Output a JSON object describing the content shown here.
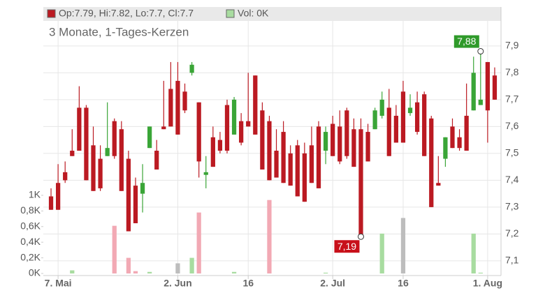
{
  "chart_data": {
    "type": "candlestick",
    "legend_text": "Op:7.79, Hi:7.82, Lo:7.7, Cl:7.7",
    "legend_volume": "Vol: 0K",
    "subtitle": "3 Monate, 1-Tages-Kerzen",
    "up_color": "#3aa537",
    "down_color": "#bb1a22",
    "volume_palette": {
      "u": "#a8dca0",
      "d": "#f2a9b4",
      "n": "#bdbdbd"
    },
    "categories": [
      null,
      "7. Mai",
      null,
      null,
      null,
      null,
      null,
      null,
      null,
      null,
      null,
      null,
      null,
      null,
      null,
      null,
      null,
      null,
      "2. Jun",
      null,
      null,
      null,
      null,
      null,
      null,
      null,
      null,
      null,
      "16",
      null,
      null,
      null,
      null,
      null,
      null,
      null,
      null,
      null,
      null,
      null,
      "2. Jul",
      null,
      null,
      null,
      null,
      null,
      null,
      null,
      null,
      null,
      "16",
      null,
      null,
      null,
      null,
      null,
      null,
      null,
      null,
      null,
      null,
      null,
      "1. Aug",
      null
    ],
    "open": [
      7.34,
      7.39,
      7.43,
      7.51,
      7.67,
      7.67,
      7.53,
      7.48,
      7.49,
      7.62,
      7.59,
      7.48,
      7.38,
      7.35,
      7.52,
      7.51,
      7.6,
      7.74,
      7.77,
      7.73,
      7.8,
      7.69,
      7.42,
      7.56,
      7.55,
      7.68,
      7.57,
      7.62,
      7.62,
      7.79,
      7.66,
      7.62,
      7.51,
      7.58,
      7.5,
      7.53,
      7.5,
      7.53,
      7.6,
      7.51,
      7.61,
      7.6,
      7.66,
      7.59,
      7.59,
      7.58,
      7.59,
      7.64,
      7.67,
      7.64,
      7.73,
      7.65,
      7.69,
      7.72,
      7.63,
      7.39,
      7.48,
      7.6,
      7.56,
      7.64,
      7.66,
      7.68,
      7.84,
      7.79
    ],
    "high": [
      7.37,
      7.46,
      7.47,
      7.59,
      7.75,
      7.68,
      7.6,
      7.53,
      7.69,
      7.63,
      7.62,
      7.51,
      7.41,
      7.46,
      7.6,
      7.55,
      7.77,
      7.84,
      7.84,
      7.76,
      7.84,
      7.69,
      7.49,
      7.6,
      7.58,
      7.7,
      7.71,
      7.65,
      7.8,
      7.79,
      7.69,
      7.64,
      7.59,
      7.62,
      7.53,
      7.55,
      7.54,
      7.6,
      7.62,
      7.6,
      7.64,
      7.66,
      7.67,
      7.63,
      7.63,
      7.61,
      7.67,
      7.73,
      7.74,
      7.68,
      7.77,
      7.72,
      7.73,
      7.73,
      7.64,
      7.49,
      7.56,
      7.63,
      7.59,
      7.76,
      7.86,
      7.88,
      7.84,
      7.82
    ],
    "low": [
      7.29,
      7.29,
      7.39,
      7.49,
      7.51,
      7.4,
      7.36,
      7.36,
      7.49,
      7.48,
      7.36,
      7.21,
      7.24,
      7.28,
      7.52,
      7.44,
      7.59,
      7.6,
      7.57,
      7.65,
      7.79,
      7.41,
      7.37,
      7.45,
      7.5,
      7.5,
      7.57,
      7.53,
      7.6,
      7.57,
      7.44,
      7.4,
      7.41,
      7.39,
      7.38,
      7.34,
      7.32,
      7.39,
      7.37,
      7.46,
      7.49,
      7.46,
      7.48,
      7.45,
      7.19,
      7.47,
      7.59,
      7.63,
      7.49,
      7.54,
      7.54,
      7.64,
      7.57,
      7.49,
      7.3,
      7.38,
      7.45,
      7.52,
      7.51,
      7.51,
      7.66,
      7.68,
      7.54,
      7.7
    ],
    "close": [
      7.29,
      7.29,
      7.4,
      7.49,
      7.51,
      7.4,
      7.36,
      7.37,
      7.52,
      7.49,
      7.36,
      7.21,
      7.24,
      7.39,
      7.6,
      7.44,
      7.59,
      7.6,
      7.57,
      7.66,
      7.83,
      7.47,
      7.43,
      7.45,
      7.51,
      7.51,
      7.7,
      7.54,
      7.6,
      7.57,
      7.44,
      7.4,
      7.41,
      7.39,
      7.38,
      7.34,
      7.32,
      7.39,
      7.37,
      7.58,
      7.49,
      7.47,
      7.49,
      7.45,
      7.19,
      7.47,
      7.66,
      7.7,
      7.49,
      7.54,
      7.54,
      7.67,
      7.58,
      7.49,
      7.3,
      7.38,
      7.56,
      7.52,
      7.52,
      7.51,
      7.8,
      7.7,
      7.66,
      7.7
    ],
    "volume": [
      0,
      0,
      0,
      0.04,
      0,
      0,
      0,
      0,
      0,
      0.61,
      0,
      0.2,
      0.03,
      0,
      0.02,
      0,
      0,
      0,
      0.13,
      0,
      0.2,
      0.78,
      0,
      0,
      0,
      0,
      0.02,
      0,
      0,
      0,
      0,
      0.94,
      0,
      0,
      0,
      0,
      0,
      0,
      0,
      0.01,
      0,
      0,
      0,
      0,
      0,
      0,
      0,
      0.51,
      0,
      0,
      0.71,
      0,
      0,
      0,
      0,
      0,
      0,
      0,
      0,
      0,
      0.51,
      0.01,
      0,
      0
    ],
    "volume_kind": [
      "d",
      "d",
      "d",
      "u",
      "d",
      "d",
      "d",
      "d",
      "u",
      "d",
      "d",
      "d",
      "d",
      "u",
      "u",
      "d",
      "d",
      "d",
      "n",
      "d",
      "u",
      "d",
      "u",
      "d",
      "d",
      "d",
      "u",
      "d",
      "d",
      "d",
      "d",
      "d",
      "d",
      "d",
      "d",
      "d",
      "d",
      "d",
      "d",
      "u",
      "d",
      "d",
      "d",
      "d",
      "d",
      "d",
      "u",
      "u",
      "d",
      "d",
      "n",
      "u",
      "d",
      "d",
      "d",
      "d",
      "u",
      "d",
      "d",
      "d",
      "u",
      "u",
      "d",
      "d"
    ],
    "ylim": [
      7.053,
      8.045
    ],
    "yticks": [
      {
        "value": 7.1,
        "label": "7,1"
      },
      {
        "value": 7.2,
        "label": "7,2"
      },
      {
        "value": 7.3,
        "label": "7,3"
      },
      {
        "value": 7.4,
        "label": "7,4"
      },
      {
        "value": 7.5,
        "label": "7,5"
      },
      {
        "value": 7.6,
        "label": "7,6"
      },
      {
        "value": 7.7,
        "label": "7,7"
      },
      {
        "value": 7.8,
        "label": "7,8"
      },
      {
        "value": 7.9,
        "label": "7,9"
      }
    ],
    "y2lim": [
      0,
      3.41
    ],
    "y2ticks": [
      {
        "value": 0,
        "label": "0K"
      },
      {
        "value": 0.2,
        "label": "0,2K"
      },
      {
        "value": 0.4,
        "label": "0,4K"
      },
      {
        "value": 0.6,
        "label": "0,6K"
      },
      {
        "value": 0.8,
        "label": "0,8K"
      },
      {
        "value": 1,
        "label": "1K"
      }
    ],
    "annotations": [
      {
        "label": "7,88",
        "value": 7.88,
        "color": "#2f9a2a"
      },
      {
        "label": "7,19",
        "value": 7.19,
        "color": "#c8101a"
      }
    ],
    "grid": true
  }
}
